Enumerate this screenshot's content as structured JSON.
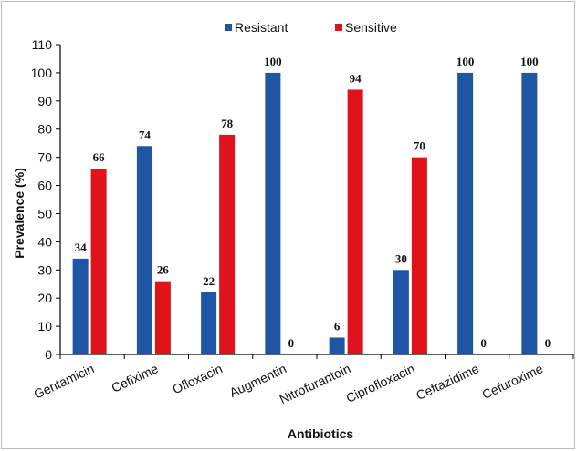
{
  "chart_data": {
    "type": "bar",
    "title": "",
    "xlabel": "Antibiotics",
    "ylabel": "Prevalence (%)",
    "ylim": [
      0,
      110
    ],
    "yticks": [
      0,
      10,
      20,
      30,
      40,
      50,
      60,
      70,
      80,
      90,
      100,
      110
    ],
    "categories": [
      "Gentamicin",
      "Cefixime",
      "Ofloxacin",
      "Augmentin",
      "Nitrofurantoin",
      "Ciprofloxacin",
      "Ceftazidime",
      "Cefuroxime"
    ],
    "series": [
      {
        "name": "Resistant",
        "color": "#1f56a3",
        "values": [
          34,
          74,
          22,
          100,
          6,
          30,
          100,
          100
        ]
      },
      {
        "name": "Sensitive",
        "color": "#e0121b",
        "values": [
          66,
          26,
          78,
          0,
          94,
          70,
          0,
          0
        ]
      }
    ],
    "legend_position": "top-center",
    "grid": false,
    "data_labels": true
  }
}
